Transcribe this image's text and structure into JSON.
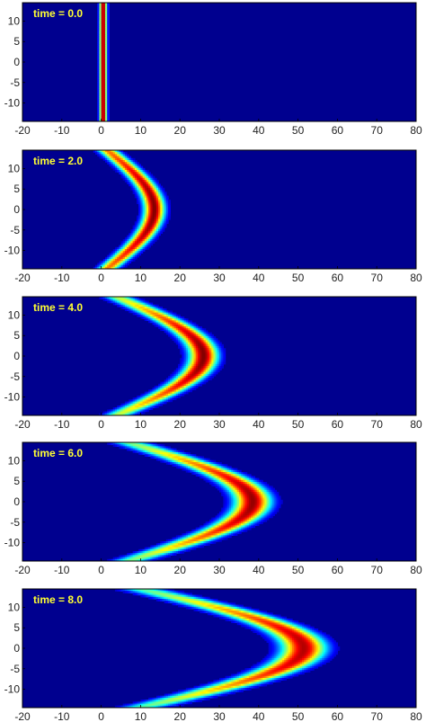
{
  "chart_data": {
    "type": "heatmap",
    "colormap": "jet",
    "colors": {
      "background": "#00008f",
      "label": "#ffff33",
      "frame": "#000000"
    },
    "grid": false,
    "xlim": [
      -20,
      80
    ],
    "ylim": [
      -14.5,
      14.5
    ],
    "xticks": [
      -20,
      -10,
      0,
      10,
      20,
      30,
      40,
      50,
      60,
      70,
      80
    ],
    "yticks": [
      10,
      5,
      0,
      -5,
      -10
    ],
    "panels": [
      {
        "label": "time = 0.0",
        "time": 0.0,
        "front_center_x": 0.5,
        "front_tip_x": 0.5,
        "front_width": 0.9,
        "tip_peak": 1.0,
        "edge_value": 1.0
      },
      {
        "label": "time = 2.0",
        "time": 2.0,
        "front_center_x": 1.5,
        "front_tip_x": 13.5,
        "front_width": 2.6,
        "tip_peak": 1.0,
        "edge_value": 0.75
      },
      {
        "label": "time = 4.0",
        "time": 4.0,
        "front_center_x": 4.0,
        "front_tip_x": 26.0,
        "front_width": 3.6,
        "tip_peak": 1.0,
        "edge_value": 0.55
      },
      {
        "label": "time = 6.0",
        "time": 6.0,
        "front_center_x": 7.0,
        "front_tip_x": 38.5,
        "front_width": 4.6,
        "tip_peak": 0.98,
        "edge_value": 0.48
      },
      {
        "label": "time = 8.0",
        "time": 8.0,
        "front_center_x": 10.0,
        "front_tip_x": 51.5,
        "front_width": 5.6,
        "tip_peak": 0.95,
        "edge_value": 0.45
      }
    ]
  }
}
